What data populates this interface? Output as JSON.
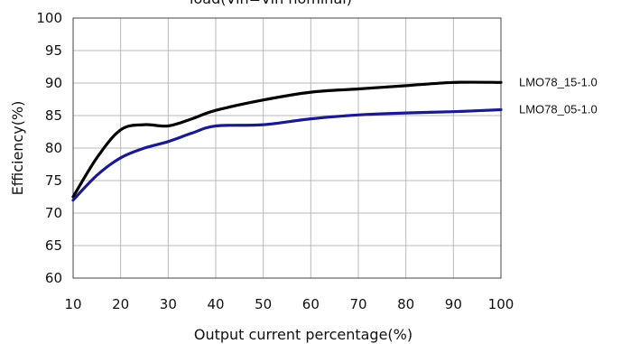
{
  "chart_data": {
    "type": "line",
    "title": "load(Vin=Vin nominal)",
    "xlabel": "Output current percentage(%)",
    "ylabel": "Efficiency(%)",
    "xlim": [
      10,
      100
    ],
    "ylim": [
      60,
      100
    ],
    "x_ticks": [
      10,
      20,
      30,
      40,
      50,
      60,
      70,
      80,
      90,
      100
    ],
    "y_ticks": [
      60,
      65,
      70,
      75,
      80,
      85,
      90,
      95,
      100
    ],
    "grid": true,
    "legend_placement": "right, at line ends",
    "series": [
      {
        "name": "LMO78_15-1.0",
        "color": "#000000",
        "x": [
          10,
          15,
          20,
          25,
          30,
          35,
          40,
          50,
          60,
          70,
          80,
          90,
          100
        ],
        "values": [
          72.5,
          78.5,
          82.8,
          83.6,
          83.4,
          84.5,
          85.8,
          87.4,
          88.6,
          89.1,
          89.6,
          90.1,
          90.1
        ]
      },
      {
        "name": "LMO78_05-1.0",
        "color": "#1a1a8c",
        "x": [
          10,
          15,
          20,
          25,
          30,
          35,
          40,
          50,
          60,
          70,
          80,
          90,
          100
        ],
        "values": [
          72.0,
          75.8,
          78.5,
          80.0,
          81.0,
          82.3,
          83.4,
          83.6,
          84.5,
          85.1,
          85.4,
          85.6,
          85.9
        ]
      }
    ]
  }
}
